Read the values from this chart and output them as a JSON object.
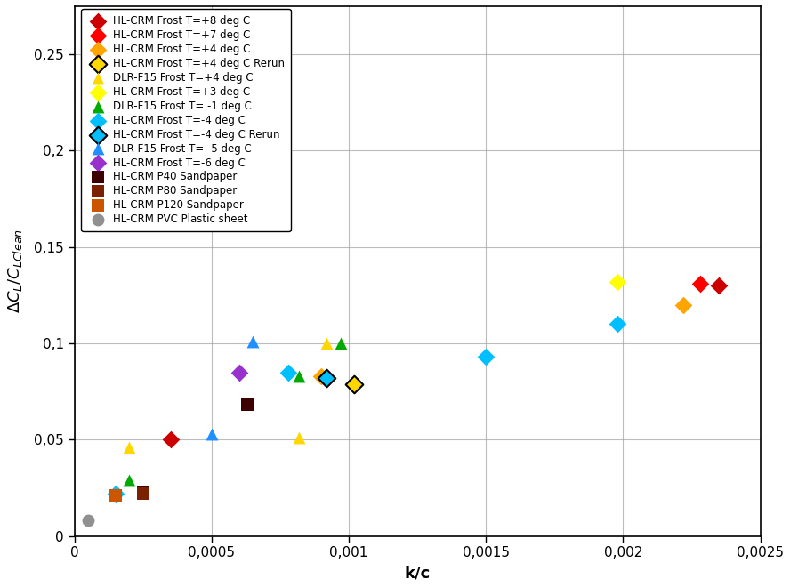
{
  "xlabel": "k/c",
  "ylabel_subscript": "L",
  "ylabel_line2": "/C",
  "ylabel_subscript2": "LClean",
  "xlim": [
    0,
    0.0025
  ],
  "ylim": [
    0,
    0.275
  ],
  "xticks": [
    0,
    0.0005,
    0.001,
    0.0015,
    0.002,
    0.0025
  ],
  "yticks": [
    0,
    0.05,
    0.1,
    0.15,
    0.2,
    0.25
  ],
  "xtick_labels": [
    "0",
    "0,0005",
    "0,001",
    "0,0015",
    "0,002",
    "0,0025"
  ],
  "ytick_labels": [
    "0",
    "0,05",
    "0,1",
    "0,15",
    "0,2",
    "0,25"
  ],
  "series": [
    {
      "label": "HL-CRM Frost T=+8 deg C",
      "marker": "D",
      "color": "#CC0000",
      "edgecolor": "#CC0000",
      "linewidth": 0,
      "data": [
        [
          0.00035,
          0.05
        ],
        [
          0.00235,
          0.13
        ]
      ]
    },
    {
      "label": "HL-CRM Frost T=+7 deg C",
      "marker": "D",
      "color": "#FF0000",
      "edgecolor": "#FF0000",
      "linewidth": 0,
      "data": [
        [
          0.00228,
          0.131
        ]
      ]
    },
    {
      "label": "HL-CRM Frost T=+4 deg C",
      "marker": "D",
      "color": "#FFA500",
      "edgecolor": "#FFA500",
      "linewidth": 0,
      "data": [
        [
          0.0009,
          0.083
        ],
        [
          0.00222,
          0.12
        ]
      ]
    },
    {
      "label": "HL-CRM Frost T=+4 deg C Rerun",
      "marker": "D",
      "color": "#FFD700",
      "edgecolor": "#000000",
      "linewidth": 1.5,
      "data": [
        [
          0.00102,
          0.079
        ]
      ]
    },
    {
      "label": "DLR-F15 Frost T=+4 deg C",
      "marker": "^",
      "color": "#FFD700",
      "edgecolor": "#FFD700",
      "linewidth": 0,
      "data": [
        [
          0.0002,
          0.046
        ],
        [
          0.00082,
          0.051
        ],
        [
          0.00092,
          0.1
        ]
      ]
    },
    {
      "label": "HL-CRM Frost T=+3 deg C",
      "marker": "D",
      "color": "#FFFF00",
      "edgecolor": "#CCCC00",
      "linewidth": 0,
      "data": [
        [
          0.00198,
          0.132
        ]
      ]
    },
    {
      "label": "DLR-F15 Frost T= -1 deg C",
      "marker": "^",
      "color": "#00AA00",
      "edgecolor": "#00AA00",
      "linewidth": 0,
      "data": [
        [
          0.0002,
          0.029
        ],
        [
          0.00082,
          0.083
        ],
        [
          0.00097,
          0.1
        ]
      ]
    },
    {
      "label": "HL-CRM Frost T=-4 deg C",
      "marker": "D",
      "color": "#00BFFF",
      "edgecolor": "#00BFFF",
      "linewidth": 0,
      "data": [
        [
          0.00015,
          0.022
        ],
        [
          0.00078,
          0.085
        ],
        [
          0.0015,
          0.093
        ],
        [
          0.00198,
          0.11
        ]
      ]
    },
    {
      "label": "HL-CRM Frost T=-4 deg C Rerun",
      "marker": "D",
      "color": "#00BFFF",
      "edgecolor": "#000000",
      "linewidth": 1.5,
      "data": [
        [
          0.00092,
          0.082
        ]
      ]
    },
    {
      "label": "DLR-F15 Frost T= -5 deg C",
      "marker": "^",
      "color": "#1E90FF",
      "edgecolor": "#1E90FF",
      "linewidth": 0,
      "data": [
        [
          0.0005,
          0.053
        ],
        [
          0.00065,
          0.101
        ]
      ]
    },
    {
      "label": "HL-CRM Frost T=-6 deg C",
      "marker": "D",
      "color": "#9932CC",
      "edgecolor": "#9932CC",
      "linewidth": 0,
      "data": [
        [
          0.0006,
          0.085
        ]
      ]
    },
    {
      "label": "HL-CRM P40 Sandpaper",
      "marker": "s",
      "color": "#3D0000",
      "edgecolor": "#3D0000",
      "linewidth": 0,
      "data": [
        [
          0.00025,
          0.023
        ],
        [
          0.00063,
          0.068
        ]
      ]
    },
    {
      "label": "HL-CRM P80 Sandpaper",
      "marker": "s",
      "color": "#7B2000",
      "edgecolor": "#7B2000",
      "linewidth": 0,
      "data": [
        [
          0.00025,
          0.022
        ]
      ]
    },
    {
      "label": "HL-CRM P120 Sandpaper",
      "marker": "s",
      "color": "#CC5500",
      "edgecolor": "#CC5500",
      "linewidth": 0,
      "data": [
        [
          0.00015,
          0.021
        ]
      ]
    },
    {
      "label": "HL-CRM PVC Plastic sheet",
      "marker": "o",
      "color": "#909090",
      "edgecolor": "#909090",
      "linewidth": 0,
      "data": [
        [
          5e-05,
          0.008
        ]
      ]
    }
  ],
  "background_color": "#FFFFFF",
  "grid_color": "#A0A0A0",
  "marker_size": 100
}
